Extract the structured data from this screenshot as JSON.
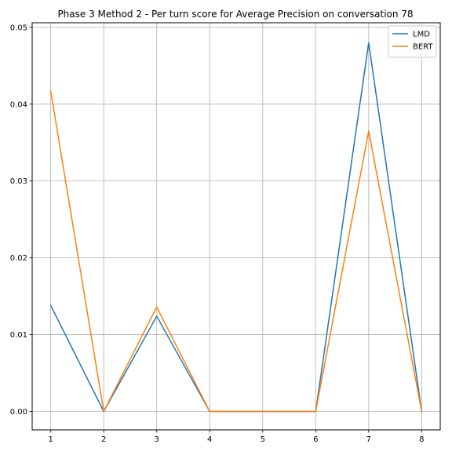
{
  "chart_data": {
    "type": "line",
    "title": "Phase 3 Method 2 - Per turn score for Average Precision on conversation 78",
    "xlabel": "",
    "ylabel": "",
    "x": [
      1,
      2,
      3,
      4,
      5,
      6,
      7,
      8
    ],
    "xlim": [
      0.65,
      8.35
    ],
    "ylim": [
      -0.0024,
      0.0506
    ],
    "xticks": [
      1,
      2,
      3,
      4,
      5,
      6,
      7,
      8
    ],
    "yticks": [
      0.0,
      0.01,
      0.02,
      0.03,
      0.04,
      0.05
    ],
    "ytick_labels": [
      "0.00",
      "0.01",
      "0.02",
      "0.03",
      "0.04",
      "0.05"
    ],
    "grid": true,
    "legend_position": "top-right",
    "series": [
      {
        "name": "LMD",
        "color": "#1f77b4",
        "values": [
          0.0138,
          0.0,
          0.0124,
          0.0,
          0.0,
          0.0,
          0.048,
          0.0
        ]
      },
      {
        "name": "BERT",
        "color": "#ff7f0e",
        "values": [
          0.0417,
          0.0,
          0.0136,
          0.0,
          0.0,
          0.0,
          0.0365,
          0.0
        ]
      }
    ]
  }
}
